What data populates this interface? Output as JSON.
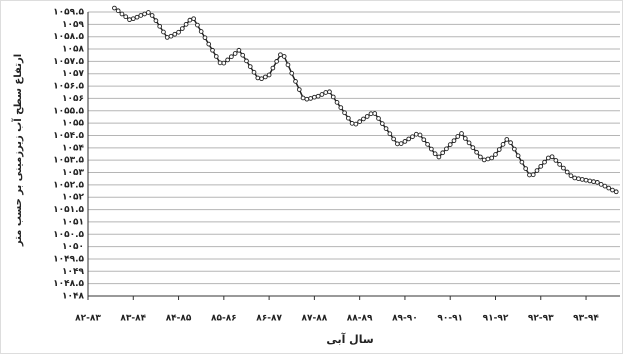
{
  "chart_data": {
    "type": "line",
    "ylabel": "ارتفاع سطح آب زیرزمینی بر حسب متر",
    "xlabel": "سال آبی",
    "x": [
      7,
      8,
      9,
      10,
      11,
      12,
      13,
      14,
      15,
      16,
      17,
      18,
      19,
      20,
      21,
      22,
      23,
      24,
      25,
      26,
      27,
      28,
      29,
      30,
      31,
      32,
      33,
      34,
      35,
      36,
      37,
      38,
      39,
      40,
      41,
      42,
      43,
      44,
      45,
      46,
      47,
      48,
      49,
      50,
      51,
      52,
      53,
      54,
      55,
      56,
      57,
      58,
      59,
      60,
      61,
      62,
      63,
      64,
      65,
      66,
      67,
      68,
      69,
      70,
      71,
      72,
      73,
      74,
      75,
      76,
      77,
      78,
      79,
      80,
      81,
      82,
      83,
      84,
      85,
      86,
      87,
      88,
      89,
      90,
      91,
      92,
      93,
      94,
      95,
      96,
      97,
      98,
      99,
      100,
      101,
      102,
      103,
      104,
      105,
      106,
      107,
      108,
      109,
      110,
      111,
      112,
      113,
      114,
      115,
      116,
      117,
      118,
      119,
      120,
      121,
      122,
      123,
      124,
      125,
      126,
      127,
      128,
      129,
      130,
      131,
      132,
      133,
      134,
      135,
      136,
      137,
      138,
      139,
      140
    ],
    "series": [
      {
        "color": "#222222",
        "values": [
          1059.66,
          1059.55,
          1059.42,
          1059.31,
          1059.19,
          1059.23,
          1059.29,
          1059.36,
          1059.42,
          1059.48,
          1059.36,
          1059.15,
          1058.92,
          1058.69,
          1058.47,
          1058.52,
          1058.6,
          1058.68,
          1058.83,
          1059.0,
          1059.17,
          1059.23,
          1058.97,
          1058.71,
          1058.46,
          1058.2,
          1057.95,
          1057.7,
          1057.44,
          1057.43,
          1057.56,
          1057.69,
          1057.82,
          1057.95,
          1057.75,
          1057.52,
          1057.29,
          1057.06,
          1056.83,
          1056.8,
          1056.87,
          1056.95,
          1057.23,
          1057.5,
          1057.77,
          1057.7,
          1057.36,
          1057.02,
          1056.69,
          1056.36,
          1056.02,
          1055.97,
          1056.0,
          1056.05,
          1056.09,
          1056.16,
          1056.24,
          1056.27,
          1056.06,
          1055.84,
          1055.63,
          1055.42,
          1055.2,
          1054.99,
          1054.96,
          1055.06,
          1055.17,
          1055.27,
          1055.38,
          1055.39,
          1055.19,
          1054.98,
          1054.78,
          1054.57,
          1054.36,
          1054.16,
          1054.17,
          1054.26,
          1054.36,
          1054.45,
          1054.55,
          1054.52,
          1054.33,
          1054.14,
          1053.95,
          1053.76,
          1053.63,
          1053.8,
          1053.96,
          1054.13,
          1054.29,
          1054.46,
          1054.58,
          1054.38,
          1054.2,
          1054.01,
          1053.82,
          1053.63,
          1053.51,
          1053.55,
          1053.59,
          1053.73,
          1053.93,
          1054.14,
          1054.34,
          1054.21,
          1053.95,
          1053.68,
          1053.42,
          1053.16,
          1052.9,
          1052.91,
          1053.08,
          1053.25,
          1053.42,
          1053.59,
          1053.64,
          1053.49,
          1053.33,
          1053.18,
          1053.02,
          1052.87,
          1052.78,
          1052.75,
          1052.72,
          1052.69,
          1052.66,
          1052.63,
          1052.6,
          1052.52,
          1052.45,
          1052.37,
          1052.29,
          1052.22
        ]
      }
    ],
    "xlim": [
      0,
      141
    ],
    "xticks": [
      {
        "value": 0,
        "label": "۸۲-۸۳"
      },
      {
        "value": 12,
        "label": "۸۳-۸۴"
      },
      {
        "value": 24,
        "label": "۸۴-۸۵"
      },
      {
        "value": 36,
        "label": "۸۵-۸۶"
      },
      {
        "value": 48,
        "label": "۸۶-۸۷"
      },
      {
        "value": 60,
        "label": "۸۷-۸۸"
      },
      {
        "value": 72,
        "label": "۸۸-۸۹"
      },
      {
        "value": 84,
        "label": "۸۹-۹۰"
      },
      {
        "value": 96,
        "label": "۹۰-۹۱"
      },
      {
        "value": 108,
        "label": "۹۱-۹۲"
      },
      {
        "value": 120,
        "label": "۹۲-۹۳"
      },
      {
        "value": 132,
        "label": "۹۳-۹۴"
      }
    ],
    "ylim": [
      1048,
      1059.5
    ],
    "yticks": [
      {
        "value": 1048,
        "label": "۱۰۴۸"
      },
      {
        "value": 1048.5,
        "label": "۱۰۴۸.۵"
      },
      {
        "value": 1049,
        "label": "۱۰۴۹"
      },
      {
        "value": 1049.5,
        "label": "۱۰۴۹.۵"
      },
      {
        "value": 1050,
        "label": "۱۰۵۰"
      },
      {
        "value": 1050.5,
        "label": "۱۰۵۰.۵"
      },
      {
        "value": 1051,
        "label": "۱۰۵۱"
      },
      {
        "value": 1051.5,
        "label": "۱۰۵۱.۵"
      },
      {
        "value": 1052,
        "label": "۱۰۵۲"
      },
      {
        "value": 1052.5,
        "label": "۱۰۵۲.۵"
      },
      {
        "value": 1053,
        "label": "۱۰۵۳"
      },
      {
        "value": 1053.5,
        "label": "۱۰۵۳.۵"
      },
      {
        "value": 1054,
        "label": "۱۰۵۴"
      },
      {
        "value": 1054.5,
        "label": "۱۰۵۴.۵"
      },
      {
        "value": 1055,
        "label": "۱۰۵۵"
      },
      {
        "value": 1055.5,
        "label": "۱۰۵۵.۵"
      },
      {
        "value": 1056,
        "label": "۱۰۵۶"
      },
      {
        "value": 1056.5,
        "label": "۱۰۵۶.۵"
      },
      {
        "value": 1057,
        "label": "۱۰۵۷"
      },
      {
        "value": 1057.5,
        "label": "۱۰۵۷.۵"
      },
      {
        "value": 1058,
        "label": "۱۰۵۸"
      },
      {
        "value": 1058.5,
        "label": "۱۰۵۸.۵"
      },
      {
        "value": 1059,
        "label": "۱۰۵۹"
      },
      {
        "value": 1059.5,
        "label": "۱۰۵۹.۵"
      }
    ],
    "grid": true
  }
}
